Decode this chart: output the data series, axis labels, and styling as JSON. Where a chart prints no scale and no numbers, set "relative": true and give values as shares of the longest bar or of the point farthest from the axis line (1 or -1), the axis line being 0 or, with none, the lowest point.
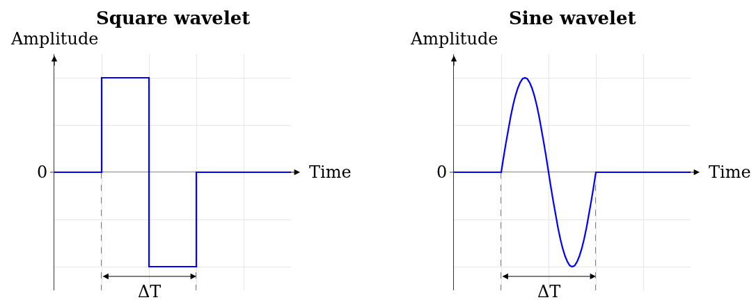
{
  "chart_data": [
    {
      "type": "step",
      "title": "Square wavelet",
      "xlabel": "Time",
      "ylabel": "Amplitude",
      "relative": true,
      "grid": true,
      "annotations": [
        "ΔT"
      ],
      "categories": [
        null,
        null,
        null,
        null,
        null,
        null
      ],
      "series": [
        {
          "color": "#0000ff",
          "values": [
            0,
            1,
            -1,
            0,
            0,
            0
          ]
        }
      ],
      "ref_lines": [
        {
          "axis": "y",
          "value": 0,
          "label": "0",
          "color": "#333333"
        }
      ]
    },
    {
      "type": "line",
      "title": "Sine wavelet",
      "xlabel": "Time",
      "ylabel": "Amplitude",
      "relative": true,
      "grid": true,
      "annotations": [
        "ΔT"
      ],
      "categories": [
        null,
        null,
        null,
        null,
        null,
        null,
        null,
        null,
        null,
        null,
        null,
        null,
        null,
        null,
        null,
        null,
        null,
        null,
        null,
        null,
        null,
        null,
        null,
        null,
        null,
        null,
        null,
        null,
        null,
        null,
        null,
        null,
        null,
        null,
        null,
        null,
        null,
        null,
        null,
        null,
        null,
        null,
        null,
        null,
        null,
        null,
        null,
        null,
        null,
        null,
        null,
        null,
        null,
        null,
        null,
        null,
        null,
        null,
        null,
        null,
        null,
        null,
        null,
        null,
        null,
        null,
        null,
        null,
        null,
        null,
        null,
        null,
        null,
        null,
        null,
        null,
        null,
        null,
        null,
        null,
        null,
        null,
        null,
        null,
        null,
        null,
        null,
        null,
        null,
        null,
        null,
        null,
        null,
        null,
        null,
        null,
        null,
        null,
        null,
        null,
        null
      ],
      "series": [
        {
          "color": "#0000ff",
          "values": [
            0,
            0,
            0,
            0,
            0,
            0,
            0,
            0,
            0,
            0,
            0,
            0,
            0,
            0,
            0,
            0,
            0,
            0,
            0,
            0,
            0,
            0.16,
            0.31,
            0.45,
            0.59,
            0.71,
            0.81,
            0.89,
            0.95,
            0.99,
            1,
            0.99,
            0.95,
            0.89,
            0.81,
            0.71,
            0.59,
            0.45,
            0.31,
            0.16,
            0,
            -0.16,
            -0.31,
            -0.45,
            -0.59,
            -0.71,
            -0.81,
            -0.89,
            -0.95,
            -0.99,
            -1,
            -0.99,
            -0.95,
            -0.89,
            -0.81,
            -0.71,
            -0.59,
            -0.45,
            -0.31,
            -0.16,
            0,
            0,
            0,
            0,
            0,
            0,
            0,
            0,
            0,
            0,
            0,
            0,
            0,
            0,
            0,
            0,
            0,
            0,
            0,
            0,
            0,
            0,
            0,
            0,
            0,
            0,
            0,
            0,
            0,
            0,
            0,
            0,
            0,
            0,
            0,
            0,
            0,
            0,
            0,
            0,
            0
          ]
        }
      ],
      "ref_lines": [
        {
          "axis": "y",
          "value": 0,
          "label": "0",
          "color": "#333333"
        }
      ]
    }
  ]
}
